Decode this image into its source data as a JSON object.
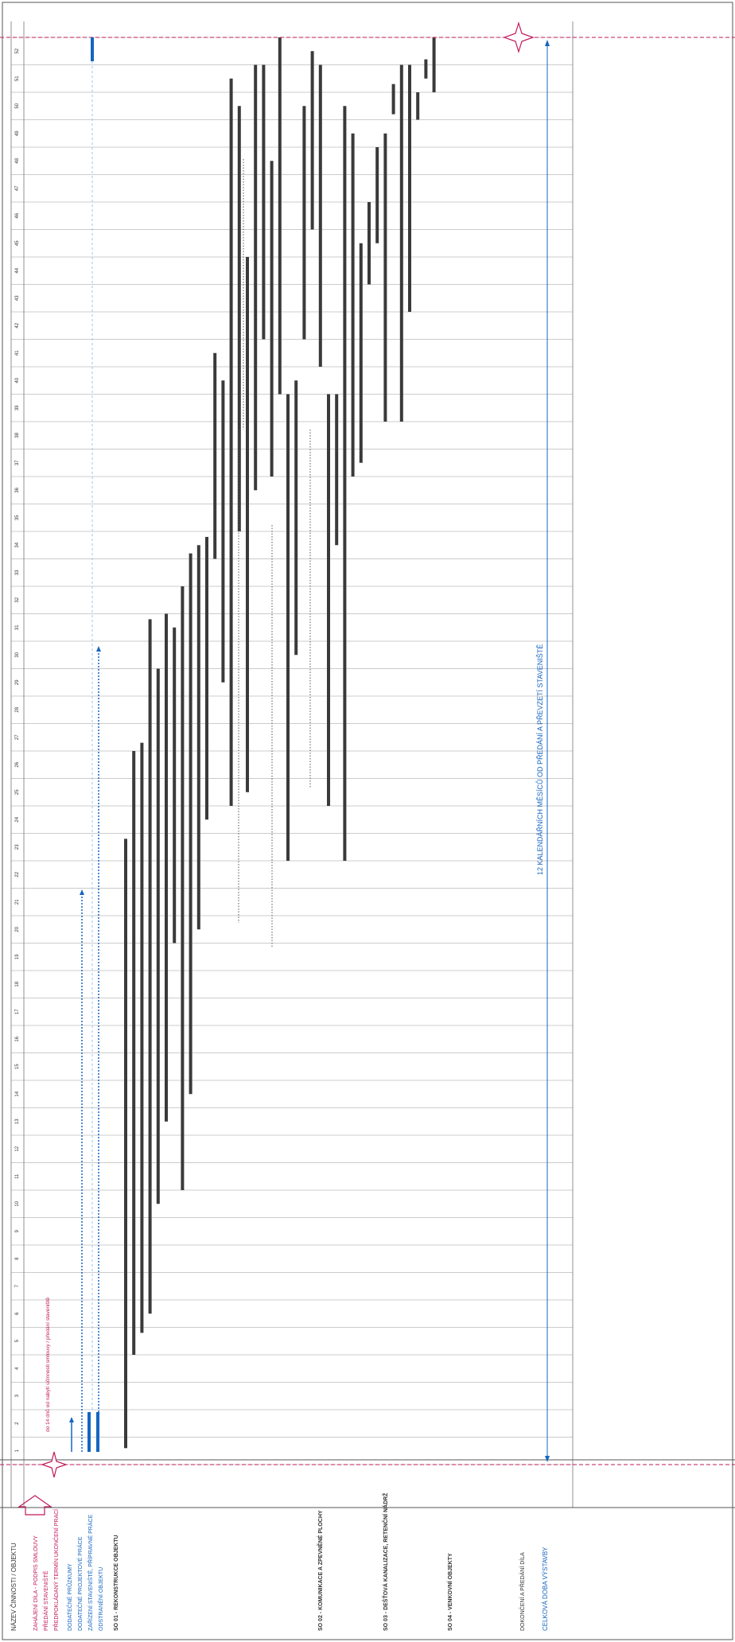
{
  "document": {
    "header_title": "NÁZEV ČINNOSTI / OBJEKTU",
    "milestones": [
      {
        "label": "ZAHÁJENÍ DÍLA - PODPIS SMLOUVY",
        "color": "#c2185b"
      },
      {
        "label": "PŘEDÁNÍ STAVENIŠTĚ",
        "color": "#c2185b"
      },
      {
        "label": "PŘEDPOKLÁDANÝ TERMÍN UKONČENÍ PRACÍ",
        "color": "#c2185b"
      }
    ],
    "prep_items": [
      {
        "label": "DODATEČNÉ PRŮZKUMY",
        "color": "#1565c0"
      },
      {
        "label": "DODATEČNÉ PROJEKTOVÉ PRÁCE",
        "color": "#1565c0"
      },
      {
        "label": "ZAŘÍZENÍ STAVENIŠTĚ, PŘÍPRAVNÉ PRÁCE",
        "color": "#1565c0"
      },
      {
        "label": "ODSTRANĚNÍ OBJEKTU",
        "color": "#1565c0"
      }
    ],
    "annotation": "do 14 dnů od nabytí účinnosti smlouvy / předání staveniště",
    "span_note": "12 KALENDÁŘNÍCH MĚSÍCŮ OD PŘEDÁNÍ A PŘEVZETÍ STAVENIŠTĚ",
    "sections": [
      {
        "title": "SO 01 - REKONSTRUKCE OBJEKTU"
      },
      {
        "title": "SO 02 - KOMUNIKACE A ZPEVNĚNÉ PLOCHY"
      },
      {
        "title": "SO 03 - DEŠŤOVÁ KANALIZACE, RETENČNÍ NÁDRŽ"
      },
      {
        "title": "SO 04 - VENKOVNÍ OBJEKTY"
      }
    ],
    "footer_items": [
      {
        "label": "DOKONČENÍ A PŘEDÁNÍ DÍLA"
      },
      {
        "label": "CELKOVÁ DOBA VÝSTAVBY"
      }
    ],
    "week_numbers": [
      "1",
      "2",
      "3",
      "4",
      "5",
      "6",
      "7",
      "8",
      "9",
      "10",
      "11",
      "12",
      "13",
      "14",
      "15",
      "16",
      "17",
      "18",
      "19",
      "20",
      "21",
      "22",
      "23",
      "24",
      "25",
      "26",
      "27",
      "28",
      "29",
      "30",
      "31",
      "32",
      "33",
      "34",
      "35",
      "36",
      "37",
      "38",
      "39",
      "40",
      "41",
      "42",
      "43",
      "44",
      "45",
      "46",
      "47",
      "48",
      "49",
      "50",
      "51",
      "52"
    ],
    "colors": {
      "bar": "#3a3a3a",
      "milestone": "#c2185b",
      "prep": "#1565c0",
      "grid": "#9a9a9a"
    }
  },
  "chart_data": {
    "type": "gantt",
    "x_unit": "week",
    "x_range": [
      0,
      52
    ],
    "tasks": [
      {
        "start": 50.8,
        "end": 52,
        "color": "blue"
      },
      {
        "start": 0.6,
        "end": 22.8
      },
      {
        "start": 4.0,
        "end": 26.0
      },
      {
        "start": 4.8,
        "end": 26.3
      },
      {
        "start": 5.5,
        "end": 30.8
      },
      {
        "start": 9.5,
        "end": 29.0
      },
      {
        "start": 12.5,
        "end": 31.0
      },
      {
        "start": 19.0,
        "end": 30.5
      },
      {
        "start": 10.0,
        "end": 32.0
      },
      {
        "start": 13.5,
        "end": 33.2
      },
      {
        "start": 19.5,
        "end": 33.5
      },
      {
        "start": 23.5,
        "end": 33.8
      },
      {
        "start": 33.0,
        "end": 40.5
      },
      {
        "start": 28.5,
        "end": 39.5
      },
      {
        "start": 24.0,
        "end": 50.5
      },
      {
        "start": 34.0,
        "end": 49.5
      },
      {
        "start": 24.5,
        "end": 44.0
      },
      {
        "start": 35.5,
        "end": 51.0
      },
      {
        "start": 41.0,
        "end": 51.0
      },
      {
        "start": 36.0,
        "end": 47.5
      },
      {
        "start": 39.0,
        "end": 52.0
      },
      {
        "start": 22.0,
        "end": 39.0
      },
      {
        "start": 29.5,
        "end": 39.5
      },
      {
        "start": 41.0,
        "end": 49.5
      },
      {
        "start": 45.0,
        "end": 51.5
      },
      {
        "start": 40.0,
        "end": 51.0
      },
      {
        "start": 24.0,
        "end": 39.0
      },
      {
        "start": 33.5,
        "end": 39.0
      },
      {
        "start": 22.0,
        "end": 49.5
      },
      {
        "start": 36.0,
        "end": 48.5
      },
      {
        "start": 36.5,
        "end": 44.5
      },
      {
        "start": 43.0,
        "end": 46.0
      },
      {
        "start": 44.5,
        "end": 48.0
      },
      {
        "start": 38.0,
        "end": 48.5
      },
      {
        "start": 49.2,
        "end": 50.3
      },
      {
        "start": 38.0,
        "end": 51.0
      },
      {
        "start": 42.0,
        "end": 51.0
      },
      {
        "start": 49.0,
        "end": 50.0
      },
      {
        "start": 50.5,
        "end": 51.2
      },
      {
        "start": 50.0,
        "end": 52.0
      }
    ]
  }
}
